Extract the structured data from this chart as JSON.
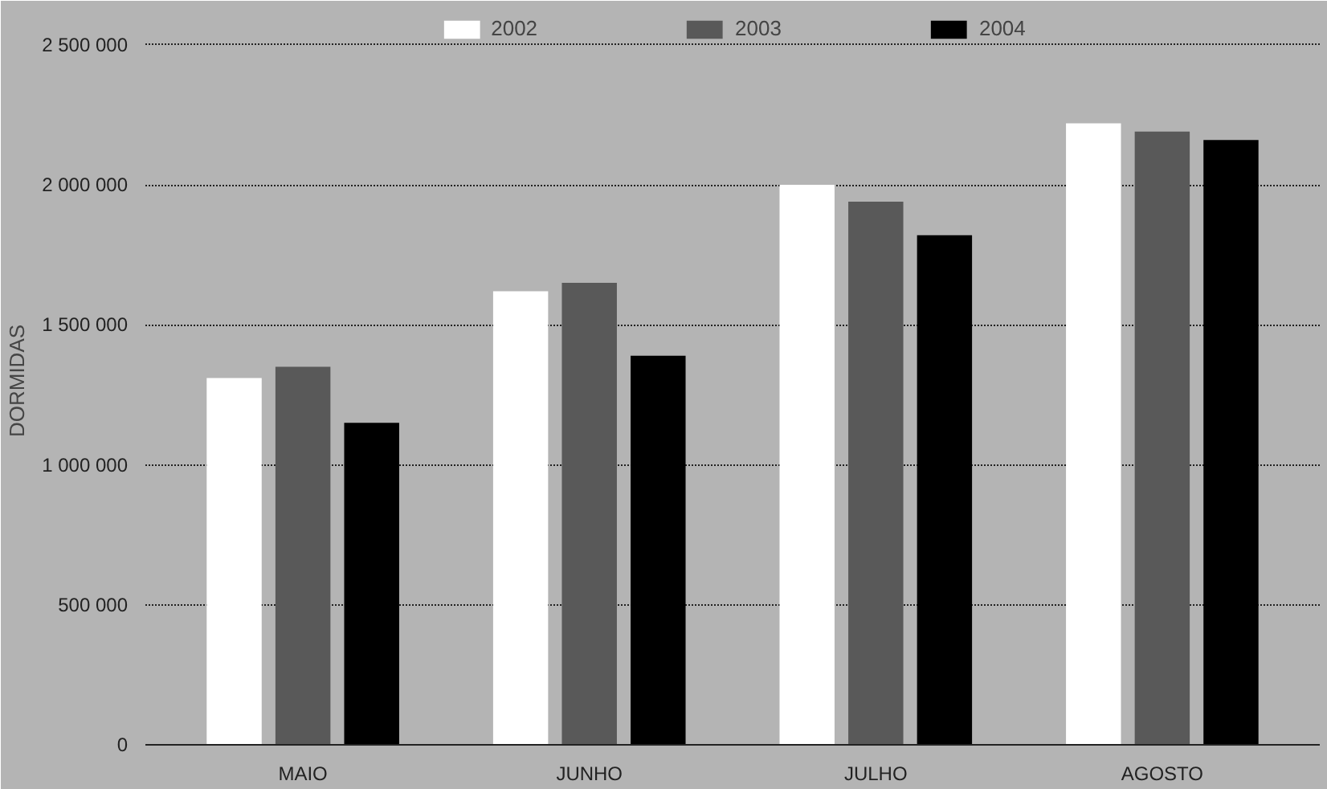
{
  "chart_data": {
    "type": "bar",
    "ylabel": "DORMIDAS",
    "categories": [
      "MAIO",
      "JUNHO",
      "JULHO",
      "AGOSTO"
    ],
    "series": [
      {
        "name": "2002",
        "color": "#ffffff",
        "values": [
          1310000,
          1620000,
          2000000,
          2220000
        ]
      },
      {
        "name": "2003",
        "color": "#595959",
        "values": [
          1350000,
          1650000,
          1940000,
          2190000
        ]
      },
      {
        "name": "2004",
        "color": "#000000",
        "values": [
          1150000,
          1390000,
          1820000,
          2160000
        ]
      }
    ],
    "ylim": [
      0,
      2600000
    ],
    "yticks": [
      {
        "value": 0,
        "label": "0"
      },
      {
        "value": 500000,
        "label": "500 000"
      },
      {
        "value": 1000000,
        "label": "1 000 000"
      },
      {
        "value": 1500000,
        "label": "1 500 000"
      },
      {
        "value": 2000000,
        "label": "2 000 000"
      },
      {
        "value": 2500000,
        "label": "2 500 000"
      }
    ],
    "grid": "y",
    "legend": "top"
  }
}
